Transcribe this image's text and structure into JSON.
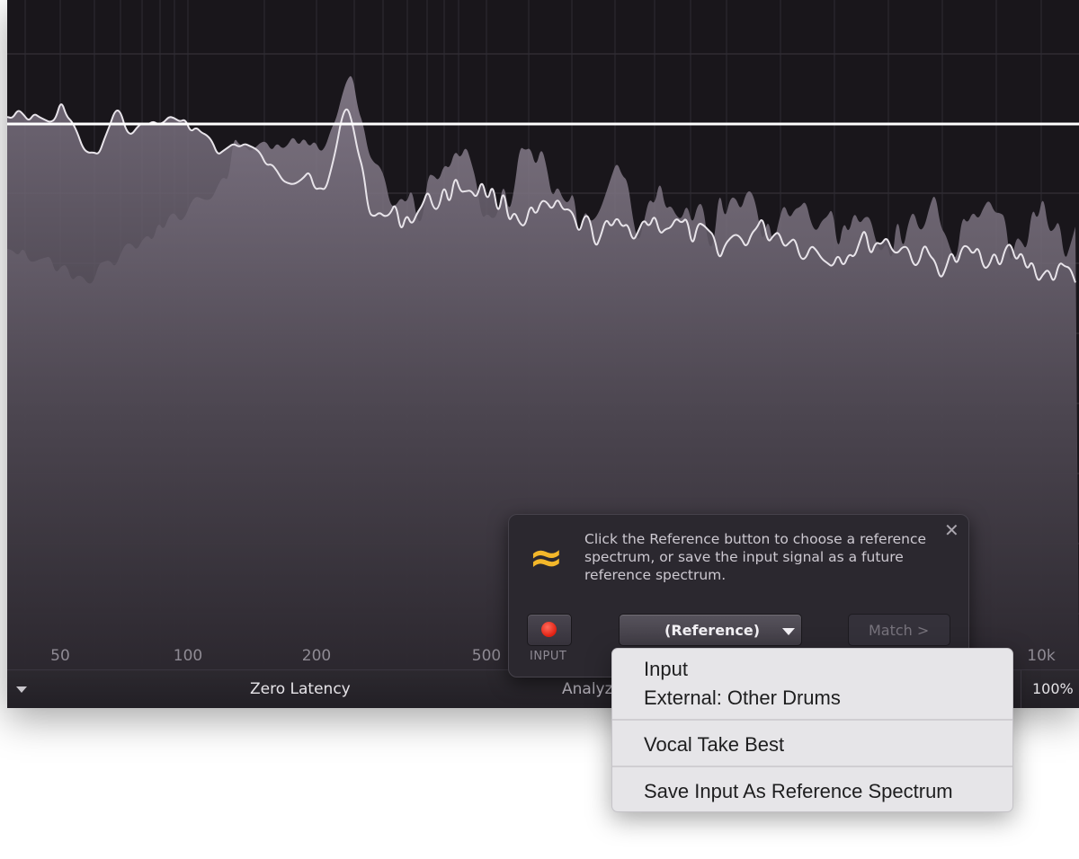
{
  "analyzer": {
    "frequency_labels": [
      "50",
      "100",
      "200",
      "500",
      "10k"
    ]
  },
  "bottom_bar": {
    "latency_mode": "Zero Latency",
    "analyzer_label": "Analyz",
    "zoom": "100%"
  },
  "reference_panel": {
    "icon": "approx-icon",
    "message": "Click the Reference button to choose a reference spectrum, or save the input signal as a future reference spectrum.",
    "close_glyph": "✕",
    "approx_glyph": "≈",
    "input_caption": "INPUT",
    "reference_button": "(Reference)",
    "match_button": "Match >"
  },
  "popup_menu": {
    "items": [
      "Input",
      "External: Other Drums",
      "Vocal Take Best",
      "Save Input As Reference Spectrum"
    ]
  },
  "colors": {
    "background": "#19161b",
    "spectrum_fill": "#6a626d",
    "reference_fill": "#807684",
    "accent_yellow": "#f3b72a",
    "record_red": "#e01f10"
  }
}
